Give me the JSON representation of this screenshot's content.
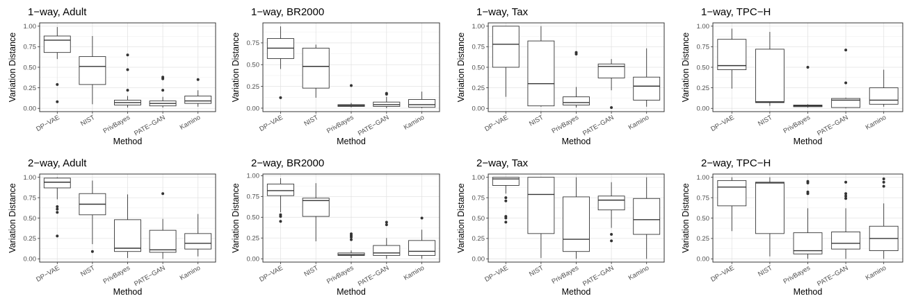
{
  "chart_data": [
    {
      "type": "box",
      "title": "1−way, Adult",
      "xlabel": "Method",
      "ylabel": "Variation Distance",
      "ylim": [
        -0.04,
        1.04
      ],
      "yticks": [
        "0.00",
        "0.25",
        "0.50",
        "0.75",
        "1.00"
      ],
      "categories": [
        "DP−VAE",
        "NIST",
        "PrivBayes",
        "PATE−GAN",
        "Kamino"
      ],
      "boxes": [
        {
          "whislo": 0.6,
          "q1": 0.68,
          "med": 0.83,
          "q3": 0.88,
          "whishi": 0.99,
          "outliers": [
            0.29,
            0.08
          ]
        },
        {
          "whislo": 0.05,
          "q1": 0.29,
          "med": 0.51,
          "q3": 0.63,
          "whishi": 0.88,
          "outliers": []
        },
        {
          "whislo": 0.01,
          "q1": 0.04,
          "med": 0.07,
          "q3": 0.1,
          "whishi": 0.15,
          "outliers": [
            0.65,
            0.47,
            0.22
          ]
        },
        {
          "whislo": 0.01,
          "q1": 0.03,
          "med": 0.06,
          "q3": 0.09,
          "whishi": 0.14,
          "outliers": [
            0.38,
            0.36,
            0.22
          ]
        },
        {
          "whislo": 0.02,
          "q1": 0.06,
          "med": 0.09,
          "q3": 0.15,
          "whishi": 0.22,
          "outliers": [
            0.35
          ]
        }
      ]
    },
    {
      "type": "box",
      "title": "1−way, BR2000",
      "xlabel": "Method",
      "ylabel": "Variation Distance",
      "ylim": [
        -0.04,
        0.98
      ],
      "yticks": [
        "0.00",
        "0.25",
        "0.50",
        "0.75"
      ],
      "categories": [
        "DP−VAE",
        "NIST",
        "PrivBayes",
        "PATE−GAN",
        "Kamino"
      ],
      "boxes": [
        {
          "whislo": 0.45,
          "q1": 0.57,
          "med": 0.69,
          "q3": 0.8,
          "whishi": 0.94,
          "outliers": [
            0.12
          ]
        },
        {
          "whislo": 0.12,
          "q1": 0.23,
          "med": 0.48,
          "q3": 0.69,
          "whishi": 0.73,
          "outliers": []
        },
        {
          "whislo": 0.01,
          "q1": 0.02,
          "med": 0.03,
          "q3": 0.04,
          "whishi": 0.06,
          "outliers": [
            0.26
          ]
        },
        {
          "whislo": 0.0,
          "q1": 0.02,
          "med": 0.04,
          "q3": 0.07,
          "whishi": 0.13,
          "outliers": [
            0.16,
            0.17
          ]
        },
        {
          "whislo": 0.0,
          "q1": 0.01,
          "med": 0.04,
          "q3": 0.1,
          "whishi": 0.19,
          "outliers": []
        }
      ]
    },
    {
      "type": "box",
      "title": "1−way, Tax",
      "xlabel": "Method",
      "ylabel": "Variation Distance",
      "ylim": [
        -0.04,
        1.04
      ],
      "yticks": [
        "0.00",
        "0.25",
        "0.50",
        "0.75",
        "1.00"
      ],
      "categories": [
        "DP−VAE",
        "NIST",
        "PrivBayes",
        "PATE−GAN",
        "Kamino"
      ],
      "boxes": [
        {
          "whislo": 0.14,
          "q1": 0.5,
          "med": 0.78,
          "q3": 1.0,
          "whishi": 1.0,
          "outliers": []
        },
        {
          "whislo": 0.02,
          "q1": 0.03,
          "med": 0.3,
          "q3": 0.82,
          "whishi": 1.0,
          "outliers": []
        },
        {
          "whislo": 0.01,
          "q1": 0.04,
          "med": 0.07,
          "q3": 0.14,
          "whishi": 0.26,
          "outliers": [
            0.66,
            0.68
          ]
        },
        {
          "whislo": 0.22,
          "q1": 0.37,
          "med": 0.51,
          "q3": 0.54,
          "whishi": 0.6,
          "outliers": [
            0.01
          ]
        },
        {
          "whislo": 0.02,
          "q1": 0.1,
          "med": 0.27,
          "q3": 0.38,
          "whishi": 0.73,
          "outliers": []
        }
      ]
    },
    {
      "type": "box",
      "title": "1−way, TPC−H",
      "xlabel": "Method",
      "ylabel": "Variation Distance",
      "ylim": [
        -0.04,
        1.04
      ],
      "yticks": [
        "0.00",
        "0.25",
        "0.50",
        "0.75",
        "1.00"
      ],
      "categories": [
        "DP−VAE",
        "NIST",
        "PrivBayes",
        "PATE−GAN",
        "Kamino"
      ],
      "boxes": [
        {
          "whislo": 0.24,
          "q1": 0.47,
          "med": 0.52,
          "q3": 0.84,
          "whishi": 0.97,
          "outliers": []
        },
        {
          "whislo": 0.03,
          "q1": 0.07,
          "med": 0.08,
          "q3": 0.72,
          "whishi": 0.93,
          "outliers": []
        },
        {
          "whislo": 0.01,
          "q1": 0.02,
          "med": 0.03,
          "q3": 0.04,
          "whishi": 0.05,
          "outliers": [
            0.5
          ]
        },
        {
          "whislo": 0.0,
          "q1": 0.01,
          "med": 0.1,
          "q3": 0.12,
          "whishi": 0.13,
          "outliers": [
            0.71,
            0.31
          ]
        },
        {
          "whislo": 0.02,
          "q1": 0.05,
          "med": 0.1,
          "q3": 0.25,
          "whishi": 0.47,
          "outliers": []
        }
      ]
    },
    {
      "type": "box",
      "title": "2−way, Adult",
      "xlabel": "Method",
      "ylabel": "Variation Distance",
      "ylim": [
        -0.04,
        1.04
      ],
      "yticks": [
        "0.00",
        "0.25",
        "0.50",
        "0.75",
        "1.00"
      ],
      "categories": [
        "DP−VAE",
        "NIST",
        "PrivBayes",
        "PATE−GAN",
        "Kamino"
      ],
      "boxes": [
        {
          "whislo": 0.73,
          "q1": 0.87,
          "med": 0.94,
          "q3": 0.99,
          "whishi": 1.0,
          "outliers": [
            0.64,
            0.61,
            0.57,
            0.28
          ]
        },
        {
          "whislo": 0.18,
          "q1": 0.54,
          "med": 0.67,
          "q3": 0.8,
          "whishi": 0.96,
          "outliers": [
            0.09
          ]
        },
        {
          "whislo": 0.01,
          "q1": 0.09,
          "med": 0.13,
          "q3": 0.48,
          "whishi": 0.79,
          "outliers": []
        },
        {
          "whislo": 0.0,
          "q1": 0.08,
          "med": 0.11,
          "q3": 0.35,
          "whishi": 0.49,
          "outliers": [
            0.8
          ]
        },
        {
          "whislo": 0.03,
          "q1": 0.12,
          "med": 0.19,
          "q3": 0.31,
          "whishi": 0.55,
          "outliers": []
        }
      ]
    },
    {
      "type": "box",
      "title": "2−way, BR2000",
      "xlabel": "Method",
      "ylabel": "Variation Distance",
      "ylim": [
        -0.04,
        1.02
      ],
      "yticks": [
        "0.00",
        "0.25",
        "0.50",
        "0.75",
        "1.00"
      ],
      "categories": [
        "DP−VAE",
        "NIST",
        "PrivBayes",
        "PATE−GAN",
        "Kamino"
      ],
      "boxes": [
        {
          "whislo": 0.56,
          "q1": 0.76,
          "med": 0.82,
          "q3": 0.9,
          "whishi": 0.97,
          "outliers": [
            0.53,
            0.51,
            0.45
          ]
        },
        {
          "whislo": 0.21,
          "q1": 0.51,
          "med": 0.7,
          "q3": 0.73,
          "whishi": 0.91,
          "outliers": []
        },
        {
          "whislo": 0.01,
          "q1": 0.04,
          "med": 0.05,
          "q3": 0.07,
          "whishi": 0.1,
          "outliers": [
            0.3,
            0.28,
            0.26,
            0.23
          ]
        },
        {
          "whislo": 0.0,
          "q1": 0.04,
          "med": 0.07,
          "q3": 0.16,
          "whishi": 0.25,
          "outliers": [
            0.44,
            0.41
          ]
        },
        {
          "whislo": 0.0,
          "q1": 0.04,
          "med": 0.09,
          "q3": 0.22,
          "whishi": 0.35,
          "outliers": [
            0.49
          ]
        }
      ]
    },
    {
      "type": "box",
      "title": "2−way, Tax",
      "xlabel": "Method",
      "ylabel": "Variation Distance",
      "ylim": [
        -0.04,
        1.04
      ],
      "yticks": [
        "0.00",
        "0.25",
        "0.50",
        "0.75",
        "1.00"
      ],
      "categories": [
        "DP−VAE",
        "NIST",
        "PrivBayes",
        "PATE−GAN",
        "Kamino"
      ],
      "boxes": [
        {
          "whislo": 0.8,
          "q1": 0.9,
          "med": 0.98,
          "q3": 1.0,
          "whishi": 1.0,
          "outliers": [
            0.75,
            0.71,
            0.52,
            0.5,
            0.45
          ]
        },
        {
          "whislo": 0.01,
          "q1": 0.31,
          "med": 0.79,
          "q3": 1.0,
          "whishi": 1.0,
          "outliers": []
        },
        {
          "whislo": 0.0,
          "q1": 0.09,
          "med": 0.24,
          "q3": 0.76,
          "whishi": 1.0,
          "outliers": []
        },
        {
          "whislo": 0.38,
          "q1": 0.6,
          "med": 0.72,
          "q3": 0.77,
          "whishi": 0.94,
          "outliers": [
            0.3,
            0.22
          ]
        },
        {
          "whislo": 0.0,
          "q1": 0.3,
          "med": 0.48,
          "q3": 0.74,
          "whishi": 1.0,
          "outliers": []
        }
      ]
    },
    {
      "type": "box",
      "title": "2−way, TPC−H",
      "xlabel": "Method",
      "ylabel": "Variation Distance",
      "ylim": [
        -0.04,
        1.04
      ],
      "yticks": [
        "0.00",
        "0.25",
        "0.50",
        "0.75",
        "1.00"
      ],
      "categories": [
        "DP−VAE",
        "NIST",
        "PrivBayes",
        "PATE−GAN",
        "Kamino"
      ],
      "boxes": [
        {
          "whislo": 0.34,
          "q1": 0.65,
          "med": 0.88,
          "q3": 0.96,
          "whishi": 1.0,
          "outliers": []
        },
        {
          "whislo": 0.03,
          "q1": 0.31,
          "med": 0.93,
          "q3": 0.94,
          "whishi": 1.0,
          "outliers": []
        },
        {
          "whislo": 0.0,
          "q1": 0.06,
          "med": 0.1,
          "q3": 0.32,
          "whishi": 0.62,
          "outliers": [
            0.95,
            0.93,
            0.82,
            0.8
          ]
        },
        {
          "whislo": 0.0,
          "q1": 0.12,
          "med": 0.19,
          "q3": 0.33,
          "whishi": 0.62,
          "outliers": [
            0.94,
            0.8,
            0.77,
            0.74
          ]
        },
        {
          "whislo": 0.0,
          "q1": 0.1,
          "med": 0.25,
          "q3": 0.4,
          "whishi": 0.68,
          "outliers": [
            0.98,
            0.94,
            0.89
          ]
        }
      ]
    }
  ]
}
